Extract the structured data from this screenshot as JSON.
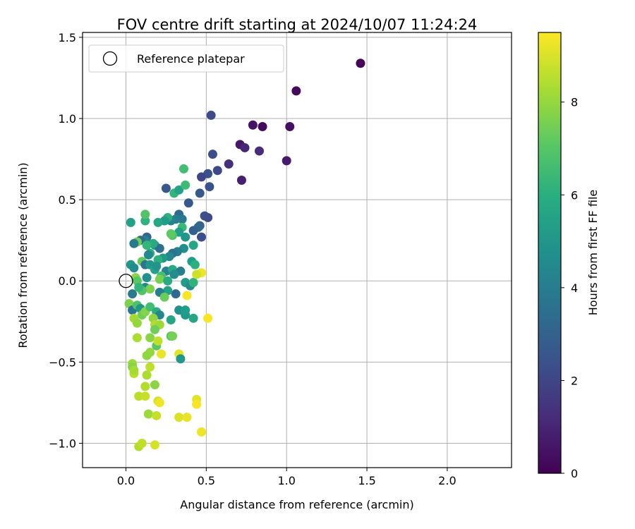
{
  "chart_data": {
    "type": "scatter",
    "title": "FOV centre drift starting at 2024/10/07 11:24:24",
    "xlabel": "Angular distance from reference (arcmin)",
    "ylabel": "Rotation from reference (arcmin)",
    "xlim": [
      -0.27,
      2.4
    ],
    "ylim": [
      -1.15,
      1.53
    ],
    "xticks": [
      0.0,
      0.5,
      1.0,
      1.5,
      2.0
    ],
    "xtick_labels": [
      "0.0",
      "0.5",
      "1.0",
      "1.5",
      "2.0"
    ],
    "yticks": [
      -1.0,
      -0.5,
      0.0,
      0.5,
      1.0,
      1.5
    ],
    "ytick_labels": [
      "−1.0",
      "−0.5",
      "0.0",
      "0.5",
      "1.0",
      "1.5"
    ],
    "grid": true,
    "legend": {
      "location": "upper-left",
      "entries": [
        {
          "label": "Reference platepar",
          "marker": "open-circle"
        }
      ]
    },
    "reference_point": {
      "x": 0.0,
      "y": 0.0
    },
    "colorbar": {
      "label": "Hours from first FF file",
      "colormap": "viridis",
      "range": [
        0,
        9.5
      ],
      "ticks": [
        0,
        2,
        4,
        6,
        8
      ],
      "tick_labels": [
        "0",
        "2",
        "4",
        "6",
        "8"
      ]
    },
    "points": [
      {
        "x": 1.46,
        "y": 1.34,
        "t": 0.1
      },
      {
        "x": 1.06,
        "y": 1.17,
        "t": 0.2
      },
      {
        "x": 1.02,
        "y": 0.95,
        "t": 0.4
      },
      {
        "x": 0.85,
        "y": 0.95,
        "t": 0.3
      },
      {
        "x": 0.79,
        "y": 0.96,
        "t": 0.5
      },
      {
        "x": 0.71,
        "y": 0.84,
        "t": 0.6
      },
      {
        "x": 0.74,
        "y": 0.82,
        "t": 1.0
      },
      {
        "x": 0.83,
        "y": 0.8,
        "t": 1.2
      },
      {
        "x": 1.0,
        "y": 0.74,
        "t": 0.7
      },
      {
        "x": 0.72,
        "y": 0.62,
        "t": 0.8
      },
      {
        "x": 0.64,
        "y": 0.72,
        "t": 1.3
      },
      {
        "x": 0.53,
        "y": 1.02,
        "t": 2.2
      },
      {
        "x": 0.54,
        "y": 0.78,
        "t": 2.3
      },
      {
        "x": 0.57,
        "y": 0.68,
        "t": 2.1
      },
      {
        "x": 0.51,
        "y": 0.66,
        "t": 2.4
      },
      {
        "x": 0.47,
        "y": 0.64,
        "t": 2.0
      },
      {
        "x": 0.52,
        "y": 0.58,
        "t": 2.5
      },
      {
        "x": 0.46,
        "y": 0.54,
        "t": 2.7
      },
      {
        "x": 0.39,
        "y": 0.48,
        "t": 2.6
      },
      {
        "x": 0.49,
        "y": 0.4,
        "t": 2.4
      },
      {
        "x": 0.51,
        "y": 0.39,
        "t": 2.2
      },
      {
        "x": 0.46,
        "y": 0.34,
        "t": 3.0
      },
      {
        "x": 0.45,
        "y": 0.33,
        "t": 3.2
      },
      {
        "x": 0.42,
        "y": 0.31,
        "t": 2.9
      },
      {
        "x": 0.47,
        "y": 0.27,
        "t": 2.3
      },
      {
        "x": 0.25,
        "y": 0.57,
        "t": 2.6
      },
      {
        "x": 0.3,
        "y": 0.54,
        "t": 6.2
      },
      {
        "x": 0.33,
        "y": 0.56,
        "t": 5.5
      },
      {
        "x": 0.37,
        "y": 0.59,
        "t": 6.5
      },
      {
        "x": 0.36,
        "y": 0.69,
        "t": 6.6
      },
      {
        "x": 0.33,
        "y": 0.41,
        "t": 3.3
      },
      {
        "x": 0.35,
        "y": 0.38,
        "t": 3.8
      },
      {
        "x": 0.31,
        "y": 0.38,
        "t": 4.0
      },
      {
        "x": 0.28,
        "y": 0.37,
        "t": 4.3
      },
      {
        "x": 0.26,
        "y": 0.39,
        "t": 6.0
      },
      {
        "x": 0.24,
        "y": 0.37,
        "t": 5.2
      },
      {
        "x": 0.35,
        "y": 0.33,
        "t": 6.4
      },
      {
        "x": 0.33,
        "y": 0.3,
        "t": 5.3
      },
      {
        "x": 0.29,
        "y": 0.28,
        "t": 6.8
      },
      {
        "x": 0.28,
        "y": 0.29,
        "t": 7.1
      },
      {
        "x": 0.37,
        "y": 0.27,
        "t": 5.0
      },
      {
        "x": 0.42,
        "y": 0.22,
        "t": 5.6
      },
      {
        "x": 0.36,
        "y": 0.2,
        "t": 4.7
      },
      {
        "x": 0.32,
        "y": 0.18,
        "t": 4.1
      },
      {
        "x": 0.29,
        "y": 0.17,
        "t": 3.6
      },
      {
        "x": 0.27,
        "y": 0.15,
        "t": 4.4
      },
      {
        "x": 0.23,
        "y": 0.14,
        "t": 5.1
      },
      {
        "x": 0.2,
        "y": 0.13,
        "t": 6.0
      },
      {
        "x": 0.18,
        "y": 0.22,
        "t": 4.8
      },
      {
        "x": 0.21,
        "y": 0.2,
        "t": 3.5
      },
      {
        "x": 0.17,
        "y": 0.23,
        "t": 5.8
      },
      {
        "x": 0.13,
        "y": 0.27,
        "t": 3.1
      },
      {
        "x": 0.12,
        "y": 0.25,
        "t": 4.2
      },
      {
        "x": 0.09,
        "y": 0.25,
        "t": 3.3
      },
      {
        "x": 0.07,
        "y": 0.24,
        "t": 7.4
      },
      {
        "x": 0.05,
        "y": 0.23,
        "t": 3.9
      },
      {
        "x": 0.03,
        "y": 0.36,
        "t": 5.4
      },
      {
        "x": 0.12,
        "y": 0.37,
        "t": 6.1
      },
      {
        "x": 0.12,
        "y": 0.41,
        "t": 6.9
      },
      {
        "x": 0.2,
        "y": 0.36,
        "t": 5.6
      },
      {
        "x": 0.13,
        "y": 0.22,
        "t": 6.3
      },
      {
        "x": 0.15,
        "y": 0.17,
        "t": 5.9
      },
      {
        "x": 0.14,
        "y": 0.16,
        "t": 4.5
      },
      {
        "x": 0.1,
        "y": 0.12,
        "t": 7.2
      },
      {
        "x": 0.12,
        "y": 0.1,
        "t": 3.7
      },
      {
        "x": 0.15,
        "y": 0.1,
        "t": 5.0
      },
      {
        "x": 0.18,
        "y": 0.07,
        "t": 5.5
      },
      {
        "x": 0.19,
        "y": 0.09,
        "t": 4.9
      },
      {
        "x": 0.25,
        "y": 0.06,
        "t": 4.3
      },
      {
        "x": 0.29,
        "y": 0.07,
        "t": 5.7
      },
      {
        "x": 0.34,
        "y": 0.06,
        "t": 4.0
      },
      {
        "x": 0.41,
        "y": 0.12,
        "t": 5.3
      },
      {
        "x": 0.43,
        "y": 0.1,
        "t": 6.0
      },
      {
        "x": 0.3,
        "y": 0.04,
        "t": 4.6
      },
      {
        "x": 0.22,
        "y": 0.03,
        "t": 6.7
      },
      {
        "x": 0.21,
        "y": 0.01,
        "t": 7.5
      },
      {
        "x": 0.26,
        "y": 0.0,
        "t": 5.8
      },
      {
        "x": 0.37,
        "y": -0.01,
        "t": 5.2
      },
      {
        "x": 0.4,
        "y": -0.03,
        "t": 4.6
      },
      {
        "x": 0.42,
        "y": -0.01,
        "t": 6.1
      },
      {
        "x": 0.47,
        "y": 0.05,
        "t": 9.3
      },
      {
        "x": 0.44,
        "y": 0.04,
        "t": 8.8
      },
      {
        "x": 0.38,
        "y": -0.09,
        "t": 9.4
      },
      {
        "x": 0.31,
        "y": -0.08,
        "t": 3.2
      },
      {
        "x": 0.26,
        "y": -0.06,
        "t": 5.4
      },
      {
        "x": 0.21,
        "y": -0.07,
        "t": 4.1
      },
      {
        "x": 0.24,
        "y": -0.1,
        "t": 7.3
      },
      {
        "x": 0.13,
        "y": 0.02,
        "t": 4.8
      },
      {
        "x": 0.12,
        "y": -0.04,
        "t": 4.4
      },
      {
        "x": 0.15,
        "y": -0.05,
        "t": 7.6
      },
      {
        "x": 0.1,
        "y": -0.06,
        "t": 6.9
      },
      {
        "x": 0.06,
        "y": 0.02,
        "t": 7.8
      },
      {
        "x": 0.07,
        "y": 0.0,
        "t": 7.0
      },
      {
        "x": 0.03,
        "y": 0.1,
        "t": 5.0
      },
      {
        "x": 0.05,
        "y": 0.08,
        "t": 4.6
      },
      {
        "x": 0.08,
        "y": -0.04,
        "t": 6.3
      },
      {
        "x": 0.04,
        "y": -0.08,
        "t": 3.9
      },
      {
        "x": 0.02,
        "y": -0.14,
        "t": 7.6
      },
      {
        "x": 0.04,
        "y": -0.18,
        "t": 3.7
      },
      {
        "x": 0.07,
        "y": -0.15,
        "t": 6.8
      },
      {
        "x": 0.09,
        "y": -0.17,
        "t": 5.0
      },
      {
        "x": 0.1,
        "y": -0.21,
        "t": 7.4
      },
      {
        "x": 0.05,
        "y": -0.23,
        "t": 8.2
      },
      {
        "x": 0.07,
        "y": -0.26,
        "t": 8.0
      },
      {
        "x": 0.12,
        "y": -0.19,
        "t": 7.7
      },
      {
        "x": 0.15,
        "y": -0.16,
        "t": 6.6
      },
      {
        "x": 0.19,
        "y": -0.19,
        "t": 5.9
      },
      {
        "x": 0.21,
        "y": -0.21,
        "t": 4.4
      },
      {
        "x": 0.17,
        "y": -0.23,
        "t": 7.9
      },
      {
        "x": 0.18,
        "y": -0.27,
        "t": 8.4
      },
      {
        "x": 0.21,
        "y": -0.27,
        "t": 8.1
      },
      {
        "x": 0.28,
        "y": -0.24,
        "t": 5.6
      },
      {
        "x": 0.33,
        "y": -0.18,
        "t": 4.8
      },
      {
        "x": 0.37,
        "y": -0.21,
        "t": 5.1
      },
      {
        "x": 0.37,
        "y": -0.18,
        "t": 5.3
      },
      {
        "x": 0.42,
        "y": -0.23,
        "t": 5.6
      },
      {
        "x": 0.51,
        "y": -0.23,
        "t": 9.4
      },
      {
        "x": 0.18,
        "y": -0.3,
        "t": 7.4
      },
      {
        "x": 0.15,
        "y": -0.35,
        "t": 7.8
      },
      {
        "x": 0.07,
        "y": -0.35,
        "t": 8.3
      },
      {
        "x": 0.19,
        "y": -0.4,
        "t": 7.0
      },
      {
        "x": 0.2,
        "y": -0.37,
        "t": 8.6
      },
      {
        "x": 0.28,
        "y": -0.34,
        "t": 6.9
      },
      {
        "x": 0.29,
        "y": -0.34,
        "t": 7.5
      },
      {
        "x": 0.33,
        "y": -0.45,
        "t": 9.1
      },
      {
        "x": 0.34,
        "y": -0.48,
        "t": 5.0
      },
      {
        "x": 0.22,
        "y": -0.45,
        "t": 9.2
      },
      {
        "x": 0.15,
        "y": -0.44,
        "t": 8.0
      },
      {
        "x": 0.13,
        "y": -0.46,
        "t": 7.9
      },
      {
        "x": 0.04,
        "y": -0.51,
        "t": 8.1
      },
      {
        "x": 0.04,
        "y": -0.53,
        "t": 7.7
      },
      {
        "x": 0.05,
        "y": -0.57,
        "t": 8.5
      },
      {
        "x": 0.05,
        "y": -0.55,
        "t": 8.2
      },
      {
        "x": 0.15,
        "y": -0.53,
        "t": 8.6
      },
      {
        "x": 0.13,
        "y": -0.58,
        "t": 8.3
      },
      {
        "x": 0.12,
        "y": -0.65,
        "t": 8.4
      },
      {
        "x": 0.18,
        "y": -0.64,
        "t": 7.8
      },
      {
        "x": 0.08,
        "y": -0.71,
        "t": 8.5
      },
      {
        "x": 0.12,
        "y": -0.71,
        "t": 8.7
      },
      {
        "x": 0.2,
        "y": -0.74,
        "t": 8.8
      },
      {
        "x": 0.21,
        "y": -0.75,
        "t": 9.3
      },
      {
        "x": 0.14,
        "y": -0.82,
        "t": 8.1
      },
      {
        "x": 0.19,
        "y": -0.83,
        "t": 8.7
      },
      {
        "x": 0.33,
        "y": -0.84,
        "t": 9.0
      },
      {
        "x": 0.38,
        "y": -0.84,
        "t": 9.2
      },
      {
        "x": 0.44,
        "y": -0.73,
        "t": 9.1
      },
      {
        "x": 0.44,
        "y": -0.76,
        "t": 9.4
      },
      {
        "x": 0.47,
        "y": -0.93,
        "t": 9.3
      },
      {
        "x": 0.08,
        "y": -1.02,
        "t": 8.4
      },
      {
        "x": 0.1,
        "y": -1.0,
        "t": 8.6
      },
      {
        "x": 0.18,
        "y": -1.01,
        "t": 8.9
      }
    ]
  }
}
